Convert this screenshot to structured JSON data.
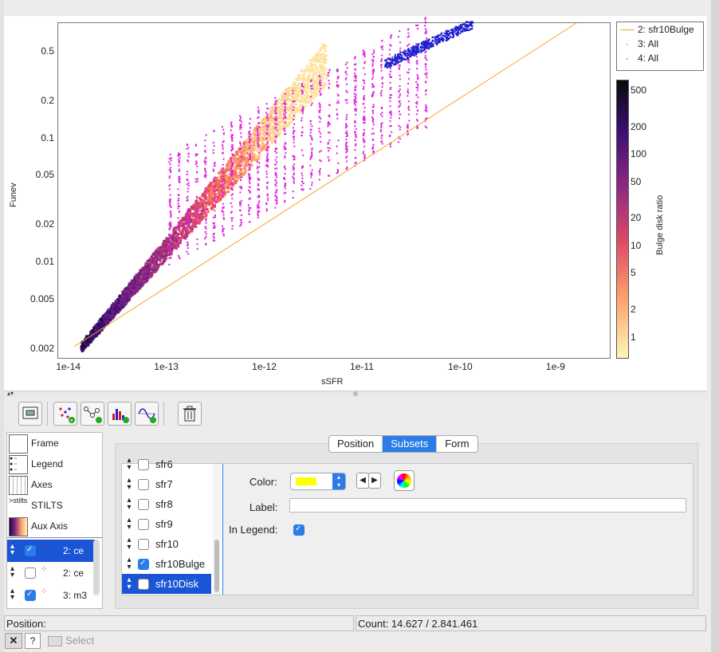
{
  "plot": {
    "x_axis_title": "sSFR",
    "y_axis_title": "Funev",
    "x_ticks": [
      "1e-14",
      "1e-13",
      "1e-12",
      "1e-11",
      "1e-10",
      "1e-9"
    ],
    "y_ticks": [
      "0.5",
      "0.2",
      "0.1",
      "0.05",
      "0.02",
      "0.01",
      "0.005",
      "0.002"
    ],
    "colorbar_title": "Bulge disk ratio",
    "colorbar_ticks": [
      "500",
      "200",
      "100",
      "50",
      "20",
      "10",
      "5",
      "2",
      "1"
    ],
    "legend": [
      {
        "label": "2: sfr10Bulge",
        "color": "#f5a623",
        "marker": "line"
      },
      {
        "label": "3: All",
        "color": "#e020e0",
        "marker": "dot"
      },
      {
        "label": "4: All",
        "color": "#1e1ed0",
        "marker": "dot"
      }
    ],
    "colors": {
      "fit_line": "#f5a623",
      "magenta": "#e020e0",
      "blue": "#1e1ed0"
    }
  },
  "toolbar": {
    "icons": [
      "plot-window-icon",
      "add-scatter-layer-icon",
      "add-link-layer-icon",
      "add-histogram-layer-icon",
      "add-function-layer-icon",
      "delete-layer-icon"
    ]
  },
  "sidebar": {
    "items": [
      {
        "label": "Frame"
      },
      {
        "label": "Legend"
      },
      {
        "label": "Axes"
      },
      {
        "label": "STILTS"
      },
      {
        "label": "Aux Axis"
      }
    ],
    "layers": [
      {
        "label": "2: ce",
        "checked": true,
        "selected": true
      },
      {
        "label": "2: ce",
        "checked": false,
        "selected": false
      },
      {
        "label": "3: m3",
        "checked": true,
        "selected": false
      }
    ]
  },
  "tabs": [
    {
      "label": "Position",
      "active": false
    },
    {
      "label": "Subsets",
      "active": true
    },
    {
      "label": "Form",
      "active": false
    }
  ],
  "subsets": [
    {
      "label": "sfr6",
      "checked": false,
      "selected": false
    },
    {
      "label": "sfr7",
      "checked": false,
      "selected": false
    },
    {
      "label": "sfr8",
      "checked": false,
      "selected": false
    },
    {
      "label": "sfr9",
      "checked": false,
      "selected": false
    },
    {
      "label": "sfr10",
      "checked": false,
      "selected": false
    },
    {
      "label": "sfr10Bulge",
      "checked": true,
      "selected": false
    },
    {
      "label": "sfr10Disk",
      "checked": false,
      "selected": true
    }
  ],
  "form": {
    "color_label": "Color:",
    "color_value": "#ffff00",
    "label_label": "Label:",
    "label_value": "",
    "in_legend_label": "In Legend:",
    "in_legend_checked": true
  },
  "status": {
    "position": "Position:",
    "count": "Count: 14.627 / 2.841.461",
    "select_label": "Select",
    "help_label": "?"
  }
}
